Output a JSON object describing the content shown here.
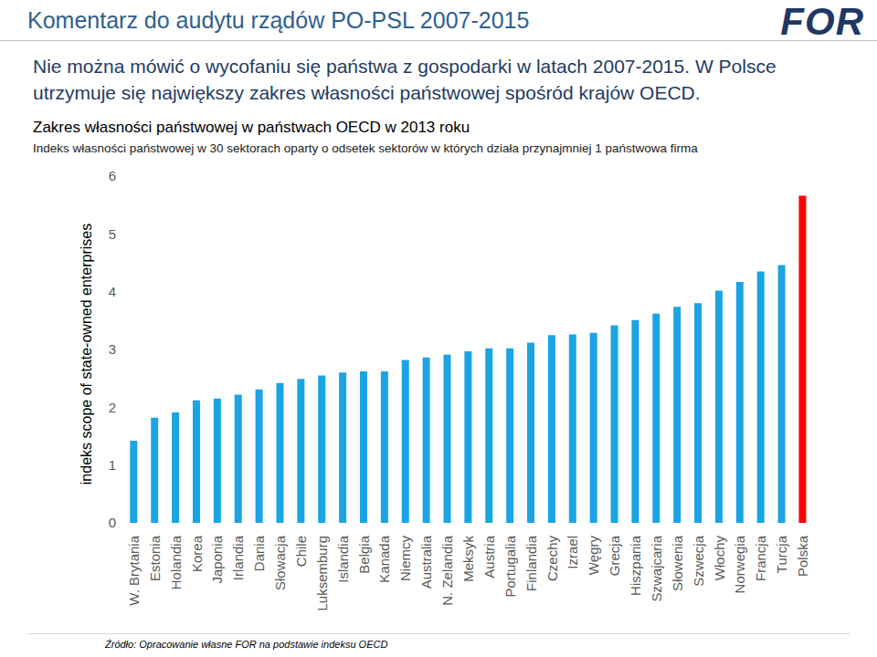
{
  "header": "Komentarz do audytu rządów PO-PSL 2007-2015",
  "logo": "FOR",
  "headline": "Nie można mówić o wycofaniu się państwa z gospodarki w latach 2007-2015. W Polsce utrzymuje się największy zakres własności państwowej spośród krajów OECD.",
  "source": "Źródło: Opracowanie własne FOR na podstawie indeksu OECD",
  "chart_data": {
    "type": "bar",
    "title": "Zakres własności państwowej w państwach OECD w 2013 roku",
    "subtitle": "Indeks własności państwowej w 30 sektorach oparty o odsetek sektorów w których działa przynajmniej 1 państwowa firma",
    "y_label": "indeks scope of state-owned enterprises",
    "categories": [
      "W. Brytania",
      "Estonia",
      "Holandia",
      "Korea",
      "Japonia",
      "Irlandia",
      "Dania",
      "Słowacja",
      "Chile",
      "Luksemburg",
      "Islandia",
      "Belgia",
      "Kanada",
      "Niemcy",
      "Australia",
      "N. Zelandia",
      "Meksyk",
      "Austria",
      "Portugalia",
      "Finlandia",
      "Czechy",
      "Izrael",
      "Węgry",
      "Grecja",
      "Hiszpania",
      "Szwajcaria",
      "Słowenia",
      "Szwecja",
      "Włochy",
      "Norwegia",
      "Francja",
      "Turcja",
      "Polska"
    ],
    "values": [
      1.42,
      1.82,
      1.91,
      2.12,
      2.15,
      2.22,
      2.31,
      2.42,
      2.49,
      2.55,
      2.6,
      2.62,
      2.62,
      2.82,
      2.86,
      2.91,
      2.97,
      3.02,
      3.02,
      3.12,
      3.25,
      3.26,
      3.29,
      3.42,
      3.51,
      3.62,
      3.74,
      3.8,
      4.02,
      4.17,
      4.35,
      4.46,
      5.66
    ],
    "colors": [
      "#1ba4e4",
      "#1ba4e4",
      "#1ba4e4",
      "#1ba4e4",
      "#1ba4e4",
      "#1ba4e4",
      "#1ba4e4",
      "#1ba4e4",
      "#1ba4e4",
      "#1ba4e4",
      "#1ba4e4",
      "#1ba4e4",
      "#1ba4e4",
      "#1ba4e4",
      "#1ba4e4",
      "#1ba4e4",
      "#1ba4e4",
      "#1ba4e4",
      "#1ba4e4",
      "#1ba4e4",
      "#1ba4e4",
      "#1ba4e4",
      "#1ba4e4",
      "#1ba4e4",
      "#1ba4e4",
      "#1ba4e4",
      "#1ba4e4",
      "#1ba4e4",
      "#1ba4e4",
      "#1ba4e4",
      "#1ba4e4",
      "#1ba4e4",
      "#ff0000"
    ],
    "ylim": [
      0,
      6
    ],
    "yticks": [
      0,
      1,
      2,
      3,
      4,
      5,
      6
    ],
    "grid": false
  }
}
